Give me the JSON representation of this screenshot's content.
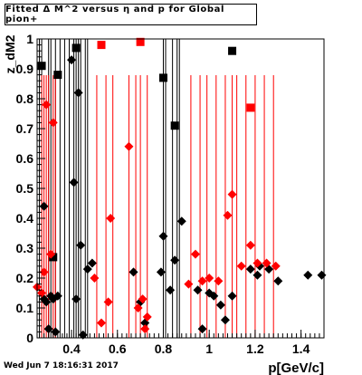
{
  "header": {
    "title": "Fitted Δ M^2 versus η and p for Global pion+",
    "timestamp": "Wed Jun  7 18:16:31 2017"
  },
  "chart_data": {
    "type": "scatter",
    "title": "Fitted Δ M^2 versus η and p for Global pion+",
    "xlabel": "p[GeV/c]",
    "ylabel": "z_dM2",
    "xlim": [
      0.25,
      1.5
    ],
    "ylim": [
      0,
      1
    ],
    "xticks": [
      "0.4",
      "0.6",
      "0.8",
      "1",
      "1.2",
      "1.4"
    ],
    "yticks": [
      "0",
      "0.1",
      "0.2",
      "0.3",
      "0.4",
      "0.5",
      "0.6",
      "0.7",
      "0.8",
      "0.9",
      "1"
    ],
    "colors": {
      "black_series": "#000000",
      "red_series": "#ff0000"
    },
    "series": [
      {
        "color": "#000000",
        "squares": [
          [
            0.27,
            0.91
          ],
          [
            0.32,
            0.27
          ],
          [
            0.34,
            0.88
          ],
          [
            0.42,
            0.97
          ],
          [
            0.8,
            0.87
          ],
          [
            0.85,
            0.71
          ],
          [
            1.1,
            0.96
          ]
        ],
        "diamonds": [
          [
            0.28,
            0.44
          ],
          [
            0.28,
            0.13
          ],
          [
            0.29,
            0.12
          ],
          [
            0.3,
            0.03
          ],
          [
            0.31,
            0.14
          ],
          [
            0.32,
            0.13
          ],
          [
            0.33,
            0.02
          ],
          [
            0.34,
            0.14
          ],
          [
            0.4,
            0.93
          ],
          [
            0.41,
            0.52
          ],
          [
            0.42,
            0.13
          ],
          [
            0.43,
            0.82
          ],
          [
            0.44,
            0.31
          ],
          [
            0.45,
            0.01
          ],
          [
            0.47,
            0.23
          ],
          [
            0.49,
            0.25
          ],
          [
            0.67,
            0.22
          ],
          [
            0.7,
            0.12
          ],
          [
            0.72,
            0.05
          ],
          [
            0.79,
            0.22
          ],
          [
            0.8,
            0.34
          ],
          [
            0.83,
            0.16
          ],
          [
            0.85,
            0.26
          ],
          [
            0.88,
            0.39
          ],
          [
            0.95,
            0.16
          ],
          [
            0.97,
            0.03
          ],
          [
            1.0,
            0.15
          ],
          [
            1.02,
            0.14
          ],
          [
            1.05,
            0.11
          ],
          [
            1.07,
            0.06
          ],
          [
            1.1,
            0.14
          ],
          [
            1.18,
            0.23
          ],
          [
            1.21,
            0.21
          ],
          [
            1.22,
            0.24
          ],
          [
            1.26,
            0.23
          ],
          [
            1.3,
            0.19
          ],
          [
            1.43,
            0.21
          ],
          [
            1.49,
            0.21
          ]
        ]
      },
      {
        "color": "#ff0000",
        "squares": [
          [
            0.53,
            0.98
          ],
          [
            0.7,
            0.99
          ],
          [
            1.18,
            0.77
          ]
        ],
        "diamonds": [
          [
            0.25,
            0.17
          ],
          [
            0.27,
            0.15
          ],
          [
            0.28,
            0.22
          ],
          [
            0.29,
            0.78
          ],
          [
            0.31,
            0.28
          ],
          [
            0.32,
            0.72
          ],
          [
            0.5,
            0.2
          ],
          [
            0.53,
            0.05
          ],
          [
            0.56,
            0.12
          ],
          [
            0.57,
            0.4
          ],
          [
            0.65,
            0.64
          ],
          [
            0.69,
            0.1
          ],
          [
            0.71,
            0.13
          ],
          [
            0.72,
            0.03
          ],
          [
            0.73,
            0.07
          ],
          [
            0.91,
            0.18
          ],
          [
            0.94,
            0.28
          ],
          [
            0.97,
            0.19
          ],
          [
            1.0,
            0.2
          ],
          [
            1.04,
            0.19
          ],
          [
            1.08,
            0.41
          ],
          [
            1.1,
            0.48
          ],
          [
            1.14,
            0.24
          ],
          [
            1.18,
            0.31
          ],
          [
            1.21,
            0.25
          ],
          [
            1.25,
            0.25
          ],
          [
            1.29,
            0.24
          ]
        ]
      }
    ],
    "vlines": {
      "black": [
        0.26,
        0.27,
        0.3,
        0.31,
        0.33,
        0.35,
        0.37,
        0.39,
        0.41,
        0.42,
        0.43,
        0.44,
        0.46,
        0.47,
        0.8,
        0.81,
        0.84,
        0.86,
        0.87
      ],
      "red": [
        0.25,
        0.27,
        0.28,
        0.29,
        0.3,
        0.32,
        0.33,
        0.51,
        0.55,
        0.58,
        0.65,
        0.68,
        0.7,
        0.73,
        0.92,
        0.96,
        0.99,
        1.03,
        1.07,
        1.1,
        1.12,
        1.16,
        1.2,
        1.24,
        1.28
      ]
    }
  }
}
